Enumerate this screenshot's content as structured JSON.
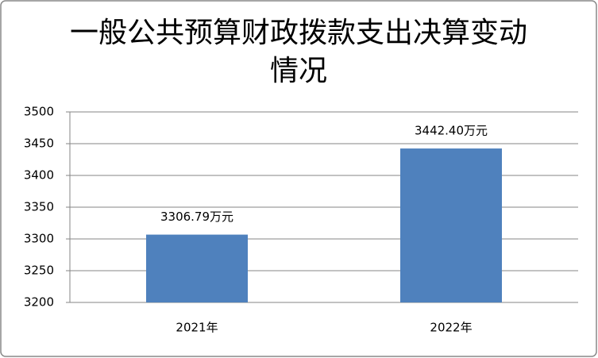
{
  "chart_data": {
    "type": "bar",
    "title": "一般公共预算财政拨款支出决算变动情况",
    "categories": [
      "2021年",
      "2022年"
    ],
    "values": [
      3306.79,
      3442.4
    ],
    "value_labels": [
      "3306.79万元",
      "3442.40万元"
    ],
    "color": "#4f81bd",
    "ylim": [
      3200,
      3500
    ],
    "yticks": [
      3200,
      3250,
      3300,
      3350,
      3400,
      3450,
      3500
    ],
    "grid": true
  }
}
